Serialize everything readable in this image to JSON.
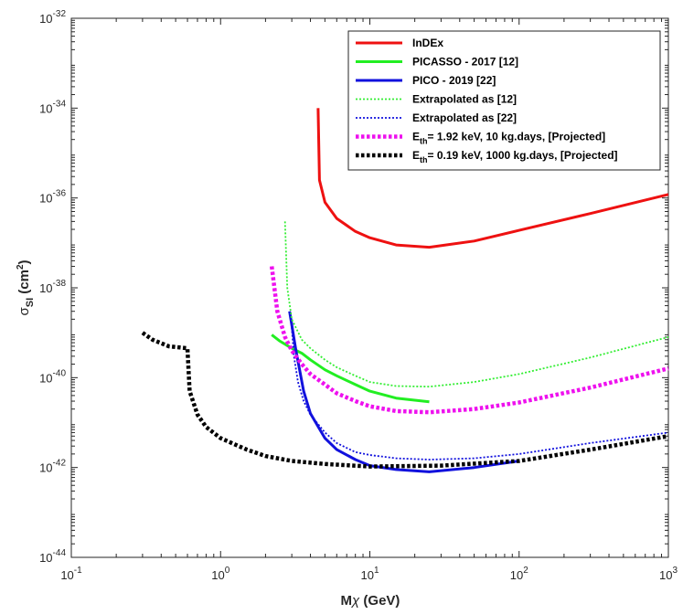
{
  "chart_data": {
    "type": "line",
    "x_scale": "log",
    "y_scale": "log",
    "xlim": [
      0.1,
      1000
    ],
    "ylim": [
      1e-44,
      1e-32
    ],
    "xlabel": "Mχ (GeV)",
    "ylabel": "σSI (cm2)",
    "ylabel_parts": {
      "symbol": "σ",
      "subscript": "SI",
      "unit_open": " (cm",
      "unit_sup": "2",
      "unit_close": ")"
    },
    "xlabel_parts": {
      "main": "M",
      "symbol": "χ",
      "unit": " (GeV)"
    },
    "x_ticks": [
      {
        "base": "10",
        "exp": "-1",
        "value": 0.1
      },
      {
        "base": "10",
        "exp": "0",
        "value": 1
      },
      {
        "base": "10",
        "exp": "1",
        "value": 10
      },
      {
        "base": "10",
        "exp": "2",
        "value": 100
      },
      {
        "base": "10",
        "exp": "3",
        "value": 1000
      }
    ],
    "y_ticks": [
      {
        "base": "10",
        "exp": "-44",
        "value": 1e-44
      },
      {
        "base": "10",
        "exp": "-42",
        "value": 1e-42
      },
      {
        "base": "10",
        "exp": "-40",
        "value": 1e-40
      },
      {
        "base": "10",
        "exp": "-38",
        "value": 1e-38
      },
      {
        "base": "10",
        "exp": "-36",
        "value": 1e-36
      },
      {
        "base": "10",
        "exp": "-34",
        "value": 1e-34
      },
      {
        "base": "10",
        "exp": "-32",
        "value": 1e-32
      }
    ],
    "legend_position": "top-right",
    "series": [
      {
        "name": "InDEx",
        "label_parts": {
          "main": "InDEx"
        },
        "color": "#ee1111",
        "style": "solid",
        "points": [
          [
            4.5,
            1e-34
          ],
          [
            4.6,
            2.5e-36
          ],
          [
            5,
            8e-37
          ],
          [
            6,
            3.5e-37
          ],
          [
            8,
            1.8e-37
          ],
          [
            10,
            1.3e-37
          ],
          [
            15,
            9e-38
          ],
          [
            25,
            8e-38
          ],
          [
            50,
            1.1e-37
          ],
          [
            100,
            1.9e-37
          ],
          [
            300,
            4.5e-37
          ],
          [
            1000,
            1.2e-36
          ]
        ]
      },
      {
        "name": "PICASSO - 2017 [12]",
        "label_parts": {
          "main": "PICASSO - 2017 [12]"
        },
        "color": "#22ee22",
        "style": "solid",
        "points": [
          [
            2.2,
            9e-40
          ],
          [
            2.5,
            6.5e-40
          ],
          [
            3,
            4.5e-40
          ],
          [
            3.5,
            3.5e-40
          ],
          [
            4,
            2.5e-40
          ],
          [
            5,
            1.5e-40
          ],
          [
            6,
            1.1e-40
          ],
          [
            8,
            7e-41
          ],
          [
            10,
            5e-41
          ],
          [
            15,
            3.5e-41
          ],
          [
            25,
            2.9e-41
          ]
        ]
      },
      {
        "name": "PICO - 2019 [22]",
        "label_parts": {
          "main": "PICO - 2019 [22]"
        },
        "color": "#1111dd",
        "style": "solid",
        "points": [
          [
            2.9,
            3e-39
          ],
          [
            3.2,
            4e-40
          ],
          [
            3.6,
            5e-41
          ],
          [
            4,
            1.6e-41
          ],
          [
            5,
            4.5e-42
          ],
          [
            6,
            2.5e-42
          ],
          [
            8,
            1.5e-42
          ],
          [
            10,
            1.1e-42
          ],
          [
            15,
            9e-43
          ],
          [
            25,
            8e-43
          ],
          [
            50,
            1e-42
          ],
          [
            100,
            1.4e-42
          ]
        ]
      },
      {
        "name": "Extrapolated as [12]",
        "label_parts": {
          "main": "Extrapolated as [12]"
        },
        "color": "#33ee33",
        "style": "dotted",
        "points": [
          [
            2.7,
            3e-37
          ],
          [
            2.8,
            1e-38
          ],
          [
            3,
            2e-39
          ],
          [
            3.5,
            7e-40
          ],
          [
            4,
            4.5e-40
          ],
          [
            5,
            2.5e-40
          ],
          [
            6,
            1.7e-40
          ],
          [
            8,
            1.1e-40
          ],
          [
            10,
            8e-41
          ],
          [
            15,
            6.5e-41
          ],
          [
            25,
            6.3e-41
          ],
          [
            50,
            8e-41
          ],
          [
            100,
            1.2e-40
          ],
          [
            300,
            2.8e-40
          ],
          [
            1000,
            8e-40
          ]
        ]
      },
      {
        "name": "Extrapolated as [22]",
        "label_parts": {
          "main": "Extrapolated as [22]"
        },
        "color": "#1111dd",
        "style": "dotted",
        "points": [
          [
            3,
            1.3e-39
          ],
          [
            3.1,
            3e-40
          ],
          [
            3.3,
            8e-41
          ],
          [
            3.6,
            3e-41
          ],
          [
            4,
            1.5e-41
          ],
          [
            5,
            6e-42
          ],
          [
            6,
            3.5e-42
          ],
          [
            8,
            2.2e-42
          ],
          [
            10,
            1.9e-42
          ],
          [
            15,
            1.6e-42
          ],
          [
            25,
            1.5e-42
          ],
          [
            50,
            1.6e-42
          ],
          [
            100,
            2e-42
          ],
          [
            300,
            3.5e-42
          ],
          [
            1000,
            6e-42
          ]
        ]
      },
      {
        "name": "Eth= 1.92 keV, 10 kg.days, [Projected]",
        "label_parts": {
          "main": "E",
          "sub": "th",
          "rest": "= 1.92 keV, 10 kg.days, [Projected]"
        },
        "color": "#ee11ee",
        "style": "thick-dotted",
        "points": [
          [
            2.2,
            3e-38
          ],
          [
            2.4,
            3e-39
          ],
          [
            2.7,
            8e-40
          ],
          [
            3,
            4e-40
          ],
          [
            3.5,
            2e-40
          ],
          [
            4,
            1.2e-40
          ],
          [
            5,
            7e-41
          ],
          [
            6,
            4.5e-41
          ],
          [
            8,
            3e-41
          ],
          [
            10,
            2.3e-41
          ],
          [
            15,
            1.8e-41
          ],
          [
            25,
            1.7e-41
          ],
          [
            50,
            2e-41
          ],
          [
            100,
            2.8e-41
          ],
          [
            300,
            6e-41
          ],
          [
            1000,
            1.6e-40
          ]
        ]
      },
      {
        "name": "Eth= 0.19 keV, 1000 kg.days, [Projected]",
        "label_parts": {
          "main": "E",
          "sub": "th",
          "rest": "= 0.19 keV, 1000 kg.days, [Projected]"
        },
        "color": "#000000",
        "style": "thick-dotted",
        "points": [
          [
            0.3,
            1e-39
          ],
          [
            0.35,
            7e-40
          ],
          [
            0.45,
            5e-40
          ],
          [
            0.6,
            4.5e-40
          ],
          [
            0.62,
            5e-41
          ],
          [
            0.7,
            1.5e-41
          ],
          [
            0.8,
            8e-42
          ],
          [
            1,
            4.5e-42
          ],
          [
            1.5,
            2.5e-42
          ],
          [
            2,
            1.8e-42
          ],
          [
            3,
            1.4e-42
          ],
          [
            5,
            1.2e-42
          ],
          [
            10,
            1.05e-42
          ],
          [
            30,
            1.1e-42
          ],
          [
            100,
            1.4e-42
          ],
          [
            300,
            2.5e-42
          ],
          [
            1000,
            5e-42
          ]
        ]
      }
    ]
  }
}
